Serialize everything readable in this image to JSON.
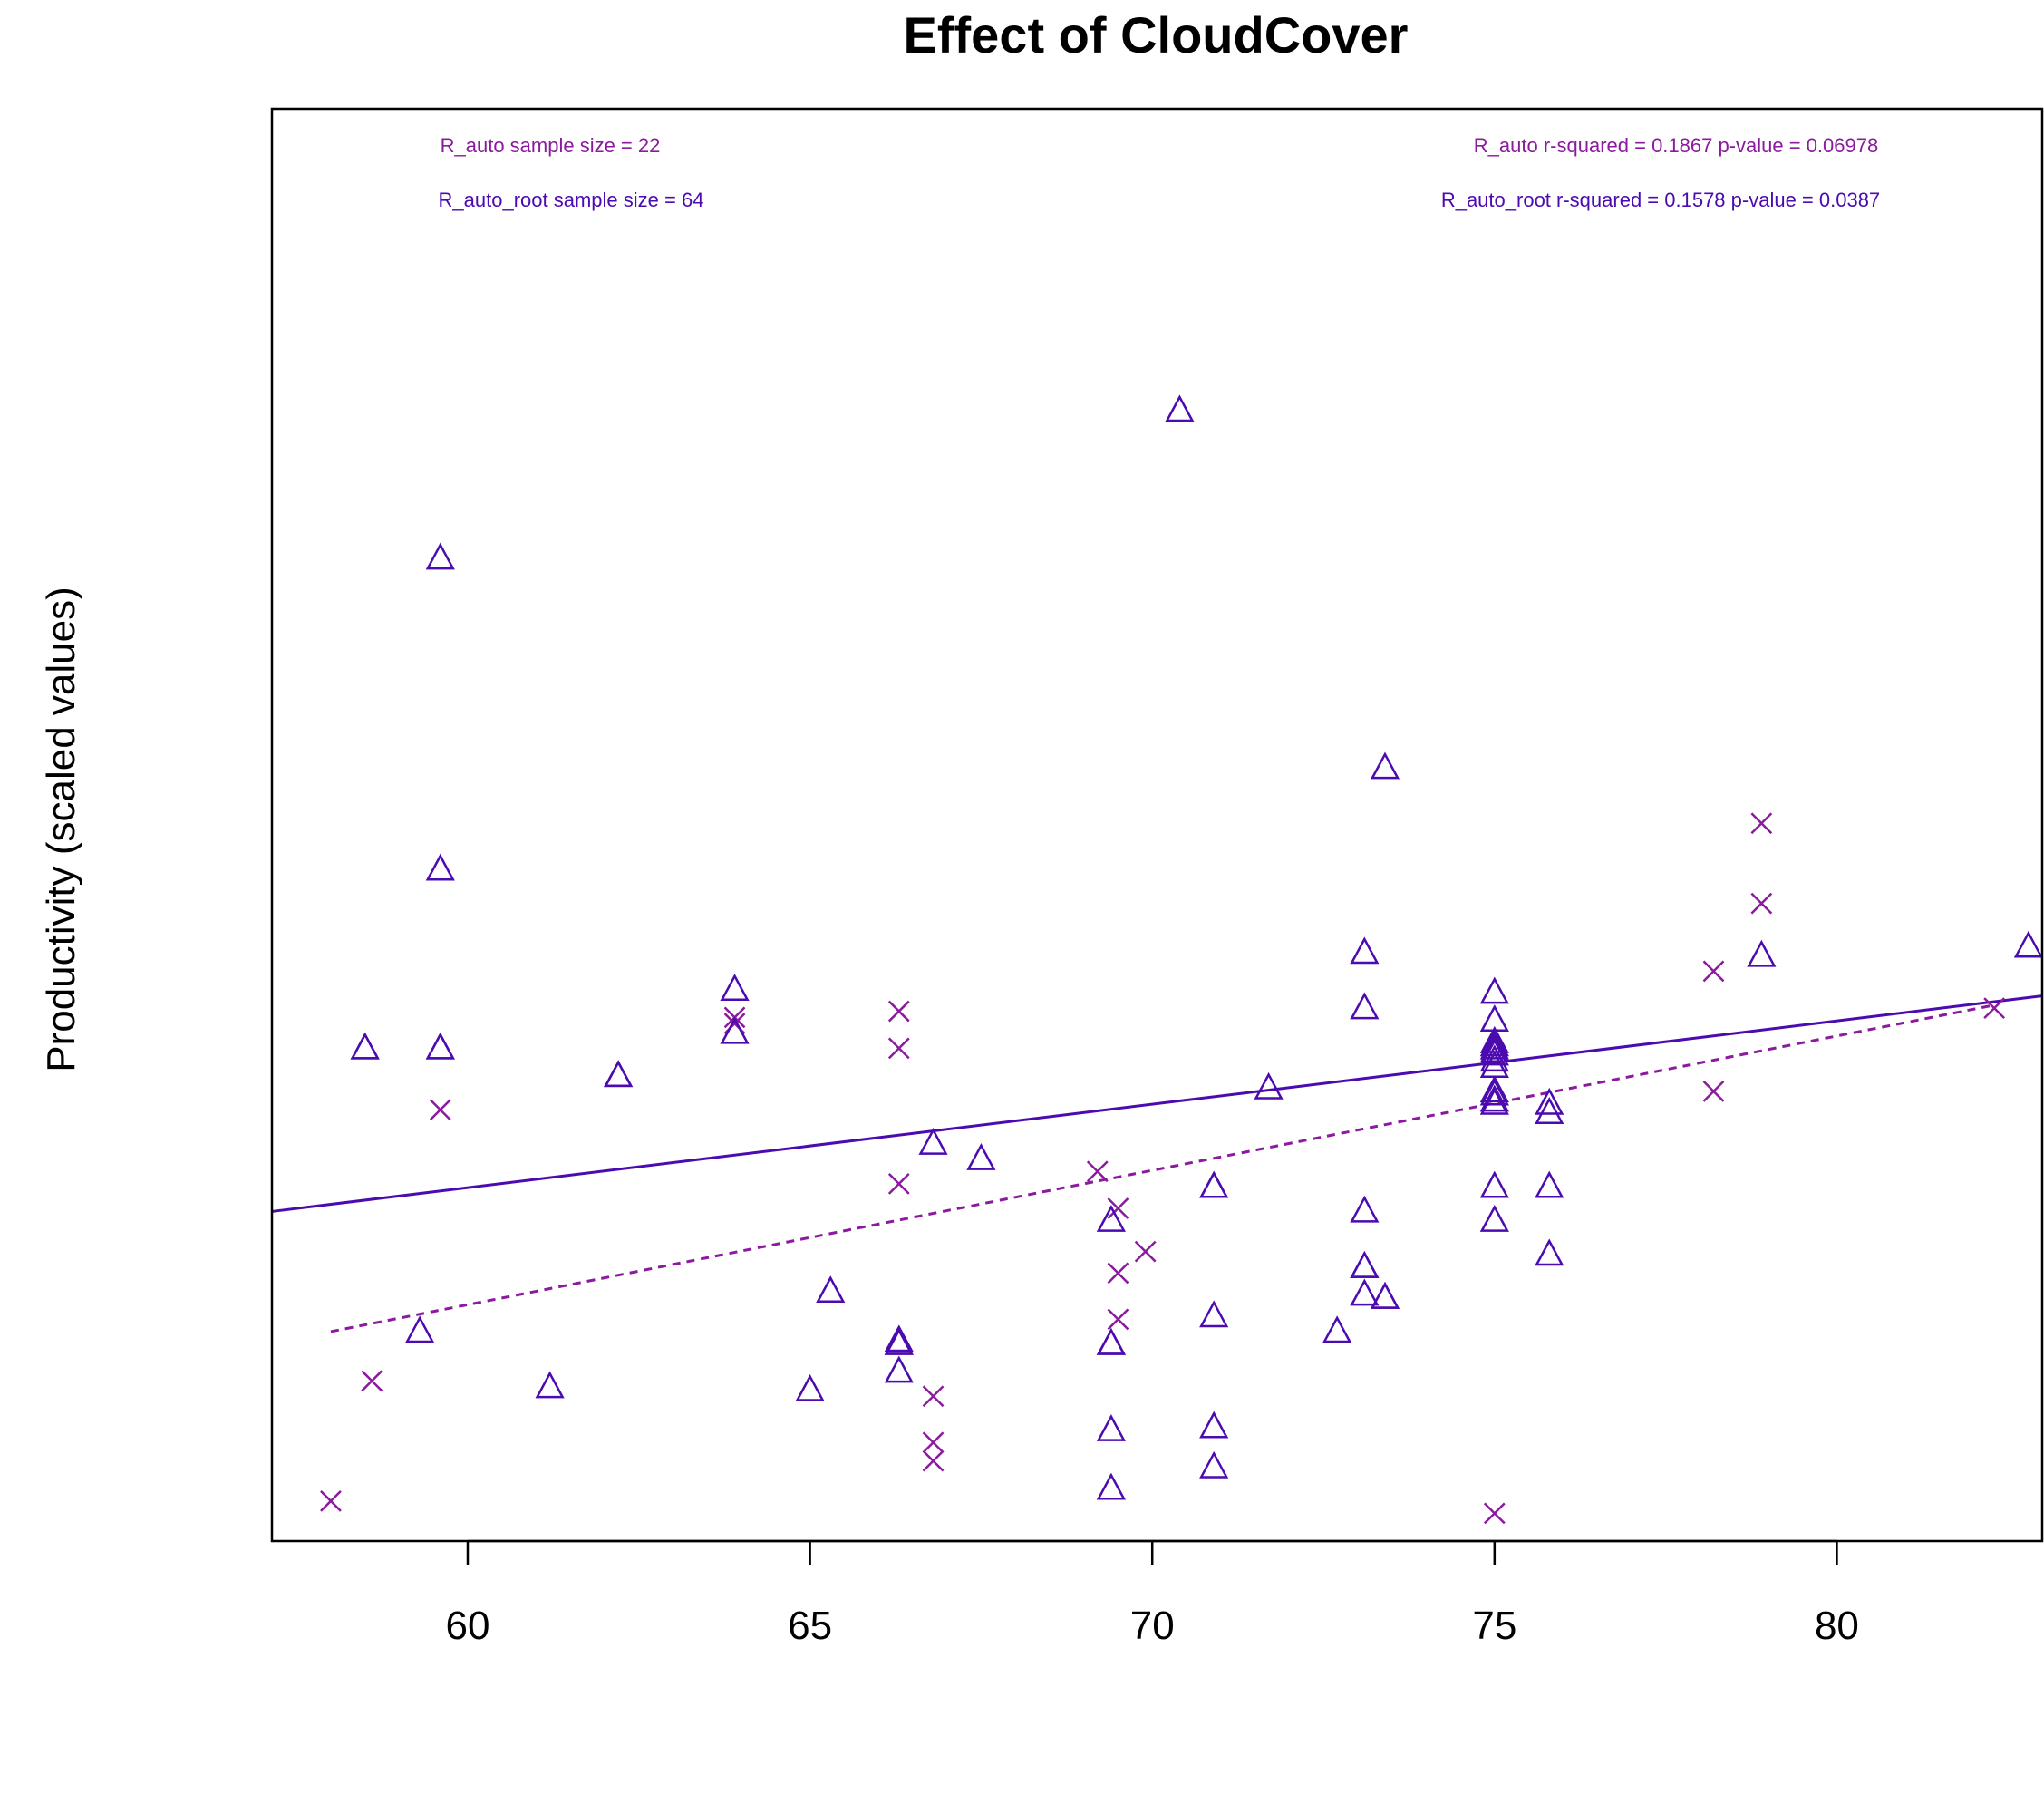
{
  "colors": {
    "r_auto": "#8B1A9E",
    "r_auto_root": "#4B0BB0",
    "axis": "#000000",
    "background": "#ffffff"
  },
  "chart_data": {
    "type": "scatter",
    "title": "Effect of CloudCover",
    "xlabel": "",
    "ylabel": "Productivity (scaled values)",
    "xlim": [
      57.14,
      83.0
    ],
    "ylim": [
      -1.1,
      3.55
    ],
    "x_ticks": [
      60,
      65,
      70,
      75,
      80
    ],
    "y_ticks_visible": false,
    "grid": false,
    "annotations": {
      "r_auto_n": "R_auto sample size = 22",
      "r_auto_root_n": "R_auto_root sample size = 64",
      "r_auto_stats": "R_auto r-squared =  0.1867 p-value =  0.06978",
      "r_auto_root_stats": "R_auto_root r-squared =  0.1578 p-value =  0.0387"
    },
    "series": [
      {
        "name": "R_auto",
        "marker": "x",
        "color_key": "r_auto",
        "fit_line": {
          "style": "dashed",
          "x": [
            58.0,
            82.3
          ],
          "y": [
            -0.42,
            0.64
          ]
        },
        "x": [
          58.0,
          58.6,
          59.6,
          63.9,
          66.3,
          66.3,
          66.3,
          66.8,
          66.8,
          66.8,
          69.2,
          69.5,
          69.5,
          69.5,
          69.9,
          75.0,
          78.2,
          78.2,
          78.9,
          78.9,
          82.3,
          63.9
        ],
        "y": [
          -0.97,
          -0.58,
          0.3,
          0.6,
          0.62,
          0.5,
          0.06,
          -0.63,
          -0.78,
          -0.84,
          0.1,
          -0.02,
          -0.23,
          -0.38,
          -0.16,
          -1.01,
          0.75,
          0.36,
          1.23,
          0.97,
          0.63,
          0.58
        ]
      },
      {
        "name": "R_auto_root",
        "marker": "triangle",
        "color_key": "r_auto_root",
        "fit_line": {
          "style": "solid",
          "x": [
            57.14,
            83.0
          ],
          "y": [
            -0.03,
            0.67
          ]
        },
        "x": [
          58.5,
          59.3,
          59.6,
          59.6,
          59.6,
          61.2,
          62.2,
          63.9,
          63.9,
          65.0,
          65.3,
          66.3,
          66.3,
          66.3,
          66.8,
          67.5,
          69.4,
          69.4,
          69.4,
          69.4,
          70.4,
          70.9,
          70.9,
          70.9,
          70.9,
          71.7,
          72.7,
          73.1,
          73.1,
          73.1,
          73.1,
          73.1,
          73.4,
          73.4,
          75.0,
          75.0,
          75.0,
          75.0,
          75.0,
          75.0,
          75.0,
          75.0,
          75.0,
          75.8,
          75.8,
          75.8,
          75.8,
          78.9,
          82.8,
          75.0,
          75.0,
          75.0,
          66.3,
          73.4,
          59.6,
          75.0,
          75.0,
          69.4,
          62.2,
          70.9,
          73.1,
          75.0,
          66.3,
          58.5
        ],
        "y": [
          0.5,
          -0.42,
          0.5,
          1.08,
          2.09,
          -0.6,
          0.41,
          0.55,
          0.69,
          -0.61,
          -0.29,
          -0.45,
          -0.46,
          -0.55,
          0.19,
          0.14,
          -0.06,
          -0.46,
          -0.74,
          -0.93,
          2.57,
          0.05,
          -0.37,
          -0.73,
          -0.86,
          0.37,
          -0.42,
          -0.03,
          -0.21,
          -0.3,
          0.81,
          0.63,
          -0.31,
          1.41,
          0.68,
          0.59,
          0.52,
          0.5,
          0.46,
          0.35,
          0.32,
          0.05,
          0.49,
          0.32,
          0.29,
          0.05,
          -0.17,
          0.8,
          0.83,
          0.44,
          0.48,
          0.36,
          -0.45,
          -0.31,
          0.5,
          0.51,
          -0.06,
          -0.46,
          0.41,
          0.05,
          -0.21,
          0.33,
          -0.46,
          0.5
        ]
      }
    ]
  }
}
